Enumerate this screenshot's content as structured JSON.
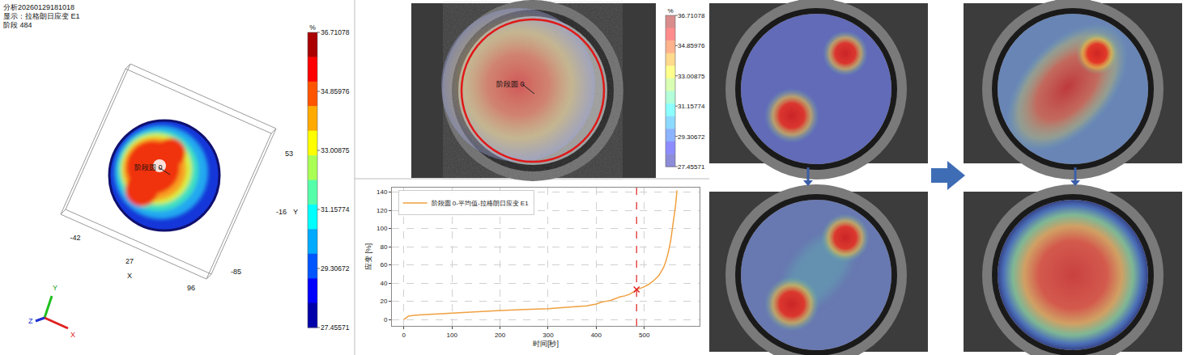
{
  "analysis_panel": {
    "info_lines": [
      "分析20260129181018",
      "显示：拉格朗日应变 E1",
      "阶段 484"
    ],
    "stage_label": "阶段圆 0",
    "x_axis": {
      "label": "X",
      "ticks": [
        -42,
        27,
        96
      ]
    },
    "y_axis": {
      "label": "Y",
      "ticks": [
        53,
        -16,
        -85
      ]
    },
    "triad": [
      "X",
      "Y",
      "Z"
    ],
    "colorbar": {
      "unit": "%",
      "range": [
        27.45571,
        36.71078
      ],
      "ticks": [
        36.71078,
        34.85976,
        33.00875,
        31.15774,
        29.30672,
        27.45571
      ]
    }
  },
  "image_panel": {
    "stage_label": "阶段圆 0",
    "colorbar": {
      "unit": "%",
      "range": [
        27.45571,
        36.71078
      ],
      "ticks": [
        36.71078,
        34.85976,
        33.00875,
        31.15774,
        29.30672,
        27.45571
      ]
    }
  },
  "chart_data": {
    "type": "line",
    "x_label": "时间[秒]",
    "y_label": "应变 [%]",
    "x": [
      0,
      5,
      10,
      30,
      60,
      100,
      150,
      200,
      250,
      300,
      350,
      380,
      400,
      410,
      420,
      430,
      440,
      450,
      460,
      470,
      480,
      484,
      490,
      500,
      510,
      520,
      530,
      540,
      545,
      550,
      555,
      560,
      565,
      568
    ],
    "series": [
      {
        "name": "阶段圆 0-平均值-拉格朗日应变 E1",
        "color": "#f0a040",
        "values": [
          0,
          2,
          4,
          5,
          6,
          7,
          9,
          10,
          11,
          12,
          14,
          15,
          17,
          19,
          20,
          21,
          23,
          25,
          26,
          28,
          31,
          33,
          34,
          36,
          39,
          43,
          48,
          57,
          64,
          74,
          87,
          104,
          125,
          142
        ]
      }
    ],
    "marker_point": {
      "x": 484,
      "y": 33,
      "marker": "x",
      "color": "#e02020"
    },
    "xlim": [
      -25,
      615
    ],
    "xticks": [
      0,
      100,
      200,
      300,
      400,
      500
    ],
    "ylim": [
      -7,
      145
    ],
    "yticks": [
      0,
      20,
      40,
      60,
      80,
      100,
      120,
      140
    ],
    "grid": true,
    "legend": "upper left"
  }
}
